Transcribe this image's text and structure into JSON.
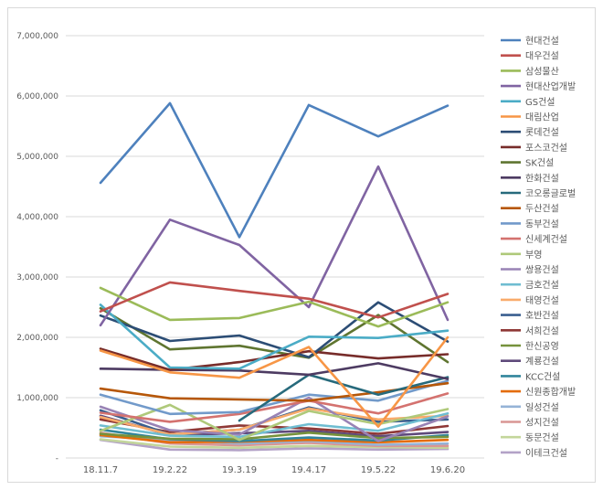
{
  "chart_data": {
    "type": "line",
    "title": "",
    "xlabel": "",
    "ylabel": "",
    "ylim": [
      0,
      7000000
    ],
    "grid": true,
    "legend_position": "right",
    "y_ticks": [
      "-",
      "1,000,000",
      "2,000,000",
      "3,000,000",
      "4,000,000",
      "5,000,000",
      "6,000,000",
      "7,000,000"
    ],
    "categories": [
      "18.11.7",
      "19.2.22",
      "19.3.19",
      "19.4.17",
      "19.5.22",
      "19.6.20"
    ],
    "series": [
      {
        "name": "현대건설",
        "color": "#4e81bd",
        "values": [
          4560000,
          5880000,
          3660000,
          5850000,
          5330000,
          5840000
        ]
      },
      {
        "name": "대우건설",
        "color": "#c0504d",
        "values": [
          2430000,
          2910000,
          2770000,
          2640000,
          2330000,
          2720000
        ]
      },
      {
        "name": "삼성물산",
        "color": "#9bbb59",
        "values": [
          2820000,
          2290000,
          2320000,
          2590000,
          2180000,
          2580000
        ]
      },
      {
        "name": "현대산업개발",
        "color": "#8064a2",
        "values": [
          2200000,
          3950000,
          3530000,
          2500000,
          4830000,
          2290000
        ]
      },
      {
        "name": "GS건설",
        "color": "#4bacc6",
        "values": [
          2540000,
          1500000,
          1480000,
          2010000,
          1990000,
          2110000
        ]
      },
      {
        "name": "대림산업",
        "color": "#f79646",
        "values": [
          1780000,
          1420000,
          1330000,
          1840000,
          520000,
          2000000
        ]
      },
      {
        "name": "롯데건설",
        "color": "#2c4d75",
        "values": [
          2360000,
          1940000,
          2030000,
          1670000,
          2580000,
          1930000
        ]
      },
      {
        "name": "포스코건설",
        "color": "#772c2a",
        "values": [
          1810000,
          1460000,
          1590000,
          1770000,
          1650000,
          1720000
        ]
      },
      {
        "name": "SK건설",
        "color": "#5f7530",
        "values": [
          2480000,
          1800000,
          1860000,
          1660000,
          2370000,
          1590000
        ]
      },
      {
        "name": "한화건설",
        "color": "#4d3b62",
        "values": [
          1480000,
          1460000,
          1450000,
          1380000,
          1570000,
          1310000
        ]
      },
      {
        "name": "코오롱글로벌",
        "color": "#276a7c",
        "values": [
          null,
          null,
          620000,
          1380000,
          1050000,
          1340000
        ]
      },
      {
        "name": "두산건설",
        "color": "#b65708",
        "values": [
          1150000,
          990000,
          970000,
          950000,
          1090000,
          1240000
        ]
      },
      {
        "name": "동부건설",
        "color": "#729aca",
        "values": [
          1050000,
          730000,
          760000,
          1050000,
          950000,
          1280000
        ]
      },
      {
        "name": "신세계건설",
        "color": "#d4726f",
        "values": [
          750000,
          600000,
          730000,
          950000,
          740000,
          1070000
        ]
      },
      {
        "name": "부영",
        "color": "#afc97a",
        "values": [
          450000,
          880000,
          300000,
          780000,
          560000,
          810000
        ]
      },
      {
        "name": "쌍용건설",
        "color": "#9983b5",
        "values": [
          850000,
          460000,
          390000,
          1000000,
          280000,
          690000
        ]
      },
      {
        "name": "금호건설",
        "color": "#6fbdd1",
        "values": [
          540000,
          370000,
          350000,
          560000,
          450000,
          740000
        ]
      },
      {
        "name": "태영건설",
        "color": "#f9ab6b",
        "values": [
          680000,
          390000,
          470000,
          820000,
          640000,
          700000
        ]
      },
      {
        "name": "호반건설",
        "color": "#3a5f8f",
        "values": [
          790000,
          390000,
          470000,
          840000,
          600000,
          640000
        ]
      },
      {
        "name": "서희건설",
        "color": "#8f3836",
        "values": [
          640000,
          430000,
          540000,
          490000,
          400000,
          530000
        ]
      },
      {
        "name": "한신공영",
        "color": "#76923c",
        "values": [
          400000,
          320000,
          310000,
          420000,
          330000,
          350000
        ]
      },
      {
        "name": "계룡건설",
        "color": "#5f4a7b",
        "values": [
          700000,
          380000,
          410000,
          450000,
          360000,
          430000
        ]
      },
      {
        "name": "KCC건설",
        "color": "#31859c",
        "values": [
          470000,
          310000,
          280000,
          340000,
          290000,
          380000
        ]
      },
      {
        "name": "신원종합개발",
        "color": "#e46c0a",
        "values": [
          380000,
          260000,
          270000,
          300000,
          260000,
          300000
        ]
      },
      {
        "name": "일성건설",
        "color": "#95b3d7",
        "values": [
          360000,
          300000,
          240000,
          280000,
          220000,
          240000
        ]
      },
      {
        "name": "성지건설",
        "color": "#d99694",
        "values": [
          420000,
          240000,
          210000,
          250000,
          200000,
          200000
        ]
      },
      {
        "name": "동문건설",
        "color": "#c3d69b",
        "values": [
          310000,
          190000,
          170000,
          200000,
          180000,
          170000
        ]
      },
      {
        "name": "이테크건설",
        "color": "#b3a2c7",
        "values": [
          300000,
          140000,
          130000,
          160000,
          140000,
          150000
        ]
      }
    ]
  }
}
